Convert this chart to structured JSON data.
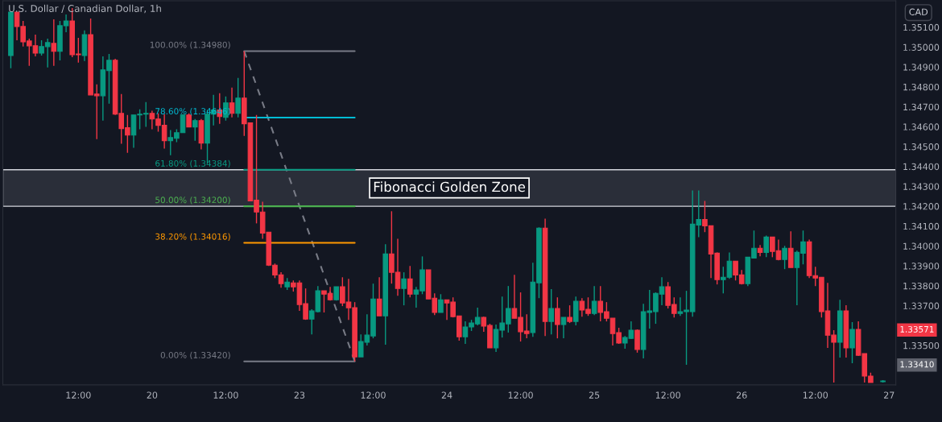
{
  "chart_data": {
    "type": "candlestick",
    "title": "U.S. Dollar / Canadian Dollar, 1h",
    "categories": [
      null,
      null,
      null,
      null,
      null,
      null,
      null,
      null,
      null,
      null,
      null,
      null,
      "12:00",
      null,
      null,
      null,
      null,
      null,
      null,
      null,
      null,
      null,
      null,
      null,
      "20",
      null,
      null,
      null,
      null,
      null,
      null,
      null,
      null,
      null,
      null,
      null,
      "12:00",
      null,
      null,
      null,
      null,
      null,
      null,
      null,
      null,
      null,
      null,
      null,
      "23",
      null,
      null,
      null,
      null,
      null,
      null,
      null,
      null,
      null,
      null,
      null,
      "12:00",
      null,
      null,
      null,
      null,
      null,
      null,
      null,
      null,
      null,
      null,
      null,
      "24",
      null,
      null,
      null,
      null,
      null,
      null,
      null,
      null,
      null,
      null,
      null,
      "12:00",
      null,
      null,
      null,
      null,
      null,
      null,
      null,
      null,
      null,
      null,
      null,
      "25",
      null,
      null,
      null,
      null,
      null,
      null,
      null,
      null,
      null,
      null,
      null,
      "12:00",
      null,
      null,
      null,
      null,
      null,
      null,
      null,
      null,
      null,
      null,
      null,
      "26",
      null,
      null,
      null,
      null,
      null,
      null,
      null,
      null,
      null,
      null,
      null,
      "12:00",
      null,
      null,
      null,
      null,
      null,
      null,
      null,
      null,
      null,
      null,
      null,
      "27"
    ],
    "ohlc": [
      null,
      [
        1.34958,
        1.35181,
        1.34894,
        1.35176
      ],
      [
        1.35176,
        1.35176,
        1.35035,
        1.35104
      ],
      [
        1.35104,
        1.35132,
        1.35003,
        1.35027
      ],
      [
        1.35031,
        1.35043,
        1.34906,
        1.35007
      ],
      [
        1.35007,
        1.35063,
        1.34954,
        1.3497
      ],
      [
        1.3497,
        1.35035,
        1.34958,
        1.35003
      ],
      [
        1.35003,
        1.35043,
        1.34898,
        1.35023
      ],
      [
        1.35019,
        1.3514,
        1.34906,
        1.34979
      ],
      [
        1.34979,
        1.35132,
        1.34934,
        1.35108
      ],
      [
        1.35108,
        1.35164,
        1.35075,
        1.35132
      ],
      [
        1.35132,
        1.35197,
        1.3495,
        1.34962
      ],
      [
        1.34966,
        1.35047,
        1.34922,
        1.34962
      ],
      [
        1.34958,
        1.35084,
        1.3493,
        1.35063
      ],
      [
        1.35063,
        1.35144,
        1.3476,
        1.3476
      ],
      [
        1.34764,
        1.34813,
        1.34538,
        1.34756
      ],
      [
        1.34756,
        1.34954,
        1.34631,
        1.34886
      ],
      [
        1.34882,
        1.34966,
        1.34716,
        1.34934
      ],
      [
        1.34934,
        1.34942,
        1.34659,
        1.34663
      ],
      [
        1.34667,
        1.34764,
        1.34514,
        1.34591
      ],
      [
        1.34595,
        1.34659,
        1.34469,
        1.34558
      ],
      [
        1.34558,
        1.34659,
        1.34494,
        1.34659
      ],
      [
        1.34659,
        1.34688,
        1.34587,
        1.34663
      ],
      [
        1.34663,
        1.34724,
        1.34599,
        1.34667
      ],
      [
        1.34667,
        1.3468,
        1.34587,
        1.34639
      ],
      [
        1.34639,
        1.34667,
        1.34575,
        1.34607
      ],
      [
        1.34607,
        1.34663,
        1.3449,
        1.3453
      ],
      [
        1.3453,
        1.34583,
        1.34457,
        1.34546
      ],
      [
        1.34542,
        1.34587,
        1.34522,
        1.3457
      ],
      [
        1.3457,
        1.34663,
        1.3457,
        1.34659
      ],
      [
        1.34659,
        1.34667,
        1.34599,
        1.34599
      ],
      [
        1.34599,
        1.34639,
        1.3453,
        1.34631
      ],
      [
        1.34631,
        1.34639,
        1.34486,
        1.34518
      ],
      [
        1.34518,
        1.34684,
        1.34417,
        1.34663
      ],
      [
        1.34663,
        1.3476,
        1.34607,
        1.34684
      ],
      [
        1.34684,
        1.34768,
        1.34615,
        1.34651
      ],
      [
        1.34647,
        1.34752,
        1.34631,
        1.3472
      ],
      [
        1.3472,
        1.34797,
        1.34647,
        1.34667
      ],
      [
        1.34667,
        1.34845,
        1.34647,
        1.34744
      ],
      [
        1.34744,
        1.3498,
        1.34554,
        1.34615
      ],
      [
        1.34619,
        1.34619,
        1.34227,
        1.34227
      ],
      [
        1.34231,
        1.34659,
        1.34114,
        1.34171
      ],
      [
        1.34171,
        1.34223,
        1.34037,
        1.34065
      ],
      [
        1.3407,
        1.3407,
        1.339,
        1.33904
      ],
      [
        1.33904,
        1.33912,
        1.33839,
        1.33855
      ],
      [
        1.33855,
        1.33868,
        1.33791,
        1.33811
      ],
      [
        1.33795,
        1.33839,
        1.33779,
        1.33819
      ],
      [
        1.33815,
        1.33827,
        1.33771,
        1.33795
      ],
      [
        1.33815,
        1.33827,
        1.33674,
        1.33706
      ],
      [
        1.3371,
        1.33787,
        1.33629,
        1.33633
      ],
      [
        1.33633,
        1.33682,
        1.33556,
        1.33674
      ],
      [
        1.3367,
        1.33799,
        1.33666,
        1.33775
      ],
      [
        1.33775,
        1.33775,
        1.33666,
        1.33758
      ],
      [
        1.33762,
        1.33795,
        1.33726,
        1.3373
      ],
      [
        1.3373,
        1.33795,
        1.33726,
        1.33795
      ],
      [
        1.33795,
        1.33843,
        1.33698,
        1.33714
      ],
      [
        1.33718,
        1.33835,
        1.33629,
        1.3369
      ],
      [
        1.3369,
        1.33718,
        1.3342,
        1.33443
      ],
      [
        1.33443,
        1.33556,
        1.33443,
        1.3352
      ],
      [
        1.33516,
        1.33657,
        1.335,
        1.33552
      ],
      [
        1.33548,
        1.33811,
        1.33536,
        1.33734
      ],
      [
        1.33734,
        1.33843,
        1.33649,
        1.33649
      ],
      [
        1.33649,
        1.34009,
        1.33504,
        1.3396
      ],
      [
        1.3396,
        1.34175,
        1.33811,
        1.33868
      ],
      [
        1.33868,
        1.34037,
        1.3375,
        1.33787
      ],
      [
        1.33787,
        1.33868,
        1.33702,
        1.33835
      ],
      [
        1.33835,
        1.339,
        1.33742,
        1.33758
      ],
      [
        1.33758,
        1.33795,
        1.3369,
        1.33779
      ],
      [
        1.33775,
        1.33948,
        1.33758,
        1.3388
      ],
      [
        1.3388,
        1.3388,
        1.33734,
        1.33734
      ],
      [
        1.33738,
        1.33762,
        1.33653,
        1.33666
      ],
      [
        1.33666,
        1.33758,
        1.33666,
        1.3373
      ],
      [
        1.3373,
        1.3373,
        1.33629,
        1.33714
      ],
      [
        1.33718,
        1.33742,
        1.33641,
        1.33645
      ],
      [
        1.33649,
        1.33649,
        1.33524,
        1.33544
      ],
      [
        1.33544,
        1.33621,
        1.33508,
        1.33593
      ],
      [
        1.33593,
        1.33629,
        1.33573,
        1.33613
      ],
      [
        1.33609,
        1.3369,
        1.33601,
        1.33641
      ],
      [
        1.33641,
        1.33645,
        1.33569,
        1.33597
      ],
      [
        1.33601,
        1.33609,
        1.33488,
        1.33488
      ],
      [
        1.33488,
        1.33605,
        1.33468,
        1.33581
      ],
      [
        1.33577,
        1.33746,
        1.3354,
        1.33613
      ],
      [
        1.33609,
        1.33799,
        1.33565,
        1.33686
      ],
      [
        1.33686,
        1.33855,
        1.33637,
        1.33637
      ],
      [
        1.33641,
        1.33767,
        1.3352,
        1.33569
      ],
      [
        1.33573,
        1.33657,
        1.33536,
        1.3356
      ],
      [
        1.33565,
        1.33916,
        1.33544,
        1.33819
      ],
      [
        1.33815,
        1.34094,
        1.33738,
        1.3409
      ],
      [
        1.3409,
        1.34138,
        1.33548,
        1.33621
      ],
      [
        1.33621,
        1.33783,
        1.33556,
        1.33686
      ],
      [
        1.33686,
        1.33742,
        1.33536,
        1.33605
      ],
      [
        1.33605,
        1.33641,
        1.33536,
        1.33641
      ],
      [
        1.33641,
        1.33702,
        1.33613,
        1.33621
      ],
      [
        1.33621,
        1.33746,
        1.33601,
        1.33722
      ],
      [
        1.33722,
        1.33738,
        1.33645,
        1.33678
      ],
      [
        1.33682,
        1.33742,
        1.33649,
        1.33661
      ],
      [
        1.33661,
        1.33799,
        1.33653,
        1.33722
      ],
      [
        1.33722,
        1.33799,
        1.33621,
        1.33666
      ],
      [
        1.3367,
        1.33718,
        1.33621,
        1.33637
      ],
      [
        1.33637,
        1.33637,
        1.335,
        1.3356
      ],
      [
        1.33565,
        1.33589,
        1.33508,
        1.33512
      ],
      [
        1.33512,
        1.33548,
        1.33484,
        1.3354
      ],
      [
        1.33536,
        1.33621,
        1.33532,
        1.33577
      ],
      [
        1.33577,
        1.33581,
        1.33464,
        1.3348
      ],
      [
        1.3348,
        1.3371,
        1.33435,
        1.3367
      ],
      [
        1.33666,
        1.33779,
        1.33585,
        1.33674
      ],
      [
        1.3367,
        1.33767,
        1.33609,
        1.33762
      ],
      [
        1.33758,
        1.33843,
        1.33702,
        1.33795
      ],
      [
        1.33795,
        1.33819,
        1.33686,
        1.33702
      ],
      [
        1.33706,
        1.33742,
        1.33641,
        1.33661
      ],
      [
        1.33661,
        1.33742,
        1.33649,
        1.3367
      ],
      [
        1.3367,
        1.33775,
        1.33403,
        1.33678
      ],
      [
        1.3367,
        1.3428,
        1.33645,
        1.3411
      ],
      [
        1.34106,
        1.3428,
        1.34045,
        1.34134
      ],
      [
        1.34134,
        1.34227,
        1.3407,
        1.34102
      ],
      [
        1.34102,
        1.34102,
        1.33839,
        1.3396
      ],
      [
        1.33964,
        1.33968,
        1.33807,
        1.33831
      ],
      [
        1.33831,
        1.33896,
        1.33762,
        1.33843
      ],
      [
        1.33843,
        1.33968,
        1.33835,
        1.33924
      ],
      [
        1.33924,
        1.33924,
        1.33827,
        1.33855
      ],
      [
        1.33855,
        1.3388,
        1.33807,
        1.33811
      ],
      [
        1.33811,
        1.33944,
        1.33799,
        1.33944
      ],
      [
        1.3394,
        1.34078,
        1.3394,
        1.33989
      ],
      [
        1.33989,
        1.34005,
        1.33948,
        1.33968
      ],
      [
        1.33968,
        1.34053,
        1.33944,
        1.34045
      ],
      [
        1.34045,
        1.34045,
        1.33944,
        1.33973
      ],
      [
        1.33977,
        1.34033,
        1.33928,
        1.33932
      ],
      [
        1.33932,
        1.34001,
        1.33884,
        1.33989
      ],
      [
        1.33989,
        1.34074,
        1.33892,
        1.33892
      ],
      [
        1.33892,
        1.33977,
        1.33702,
        1.33968
      ],
      [
        1.33964,
        1.34078,
        1.33908,
        1.34021
      ],
      [
        1.34021,
        1.34033,
        1.33839,
        1.33851
      ],
      [
        1.33851,
        1.33896,
        1.33799,
        1.33839
      ],
      [
        1.33843,
        1.33843,
        1.33641,
        1.3367
      ],
      [
        1.33674,
        1.33815,
        1.33488,
        1.33552
      ],
      [
        1.33552,
        1.33577,
        1.33314,
        1.33516
      ],
      [
        1.33516,
        1.3373,
        1.33439,
        1.33674
      ],
      [
        1.33674,
        1.33702,
        1.33439,
        1.33488
      ],
      [
        1.33488,
        1.33617,
        1.33411,
        1.33581
      ],
      [
        1.33581,
        1.33621,
        1.33447,
        1.33451
      ],
      [
        1.33459,
        1.33459,
        1.33314,
        1.33346
      ],
      [
        1.33346,
        1.33363,
        1.33314,
        1.33314
      ],
      null,
      [
        1.33318,
        1.33326,
        1.33314,
        1.33322
      ],
      null
    ],
    "series": [
      {
        "type": "line",
        "color": "#787b86",
        "line_style": "dashed",
        "values": [
          null,
          null,
          null,
          null,
          null,
          null,
          null,
          null,
          null,
          null,
          null,
          null,
          null,
          null,
          null,
          null,
          null,
          null,
          null,
          null,
          null,
          null,
          null,
          null,
          null,
          null,
          null,
          null,
          null,
          null,
          null,
          null,
          null,
          null,
          null,
          null,
          null,
          null,
          null,
          1.3498,
          1.34893,
          1.34807,
          1.3472,
          1.34633,
          1.34547,
          1.3446,
          1.34373,
          1.34287,
          1.342,
          1.34113,
          1.34027,
          1.3394,
          1.33853,
          1.33767,
          1.3368,
          1.33593,
          1.33507,
          1.3342,
          null,
          null,
          null,
          null,
          null,
          null,
          null,
          null,
          null,
          null,
          null,
          null,
          null,
          null,
          null,
          null,
          null,
          null,
          null,
          null,
          null,
          null,
          null,
          null,
          null,
          null,
          null,
          null,
          null,
          null,
          null,
          null,
          null,
          null,
          null,
          null,
          null,
          null,
          null,
          null,
          null,
          null,
          null,
          null,
          null,
          null,
          null,
          null,
          null,
          null,
          null,
          null,
          null,
          null,
          null,
          null,
          null,
          null,
          null,
          null,
          null,
          null,
          null,
          null,
          null,
          null,
          null,
          null,
          null,
          null,
          null,
          null,
          null,
          null,
          null,
          null,
          null,
          null,
          null,
          null,
          null,
          null,
          null,
          null,
          null,
          null,
          null
        ]
      },
      {
        "type": "line",
        "name": "100.00% (1.34980)",
        "color": "#787b86",
        "values": [
          null,
          null,
          null,
          null,
          null,
          null,
          null,
          null,
          null,
          null,
          null,
          null,
          null,
          null,
          null,
          null,
          null,
          null,
          null,
          null,
          null,
          null,
          null,
          null,
          null,
          null,
          null,
          null,
          null,
          null,
          null,
          null,
          null,
          null,
          null,
          null,
          null,
          null,
          null,
          1.3498,
          1.3498,
          1.3498,
          1.3498,
          1.3498,
          1.3498,
          1.3498,
          1.3498,
          1.3498,
          1.3498,
          1.3498,
          1.3498,
          1.3498,
          1.3498,
          1.3498,
          1.3498,
          1.3498,
          1.3498,
          1.3498,
          null,
          null,
          null,
          null,
          null,
          null,
          null,
          null,
          null,
          null,
          null,
          null,
          null,
          null,
          null,
          null,
          null,
          null,
          null,
          null,
          null,
          null,
          null,
          null,
          null,
          null,
          null,
          null,
          null,
          null,
          null,
          null,
          null,
          null,
          null,
          null,
          null,
          null,
          null,
          null,
          null,
          null,
          null,
          null,
          null,
          null,
          null,
          null,
          null,
          null,
          null,
          null,
          null,
          null,
          null,
          null,
          null,
          null,
          null,
          null,
          null,
          null,
          null,
          null,
          null,
          null,
          null,
          null,
          null,
          null,
          null,
          null,
          null,
          null,
          null,
          null,
          null,
          null,
          null,
          null,
          null,
          null,
          null,
          null,
          null,
          null,
          null
        ]
      },
      {
        "type": "line",
        "name": "78.60% (1.34646)",
        "color": "#00bcd4",
        "values": [
          null,
          null,
          null,
          null,
          null,
          null,
          null,
          null,
          null,
          null,
          null,
          null,
          null,
          null,
          null,
          null,
          null,
          null,
          null,
          null,
          null,
          null,
          null,
          null,
          null,
          null,
          null,
          null,
          null,
          null,
          null,
          null,
          null,
          null,
          null,
          null,
          null,
          null,
          null,
          1.34646,
          1.34646,
          1.34646,
          1.34646,
          1.34646,
          1.34646,
          1.34646,
          1.34646,
          1.34646,
          1.34646,
          1.34646,
          1.34646,
          1.34646,
          1.34646,
          1.34646,
          1.34646,
          1.34646,
          1.34646,
          1.34646,
          null,
          null,
          null,
          null,
          null,
          null,
          null,
          null,
          null,
          null,
          null,
          null,
          null,
          null,
          null,
          null,
          null,
          null,
          null,
          null,
          null,
          null,
          null,
          null,
          null,
          null,
          null,
          null,
          null,
          null,
          null,
          null,
          null,
          null,
          null,
          null,
          null,
          null,
          null,
          null,
          null,
          null,
          null,
          null,
          null,
          null,
          null,
          null,
          null,
          null,
          null,
          null,
          null,
          null,
          null,
          null,
          null,
          null,
          null,
          null,
          null,
          null,
          null,
          null,
          null,
          null,
          null,
          null,
          null,
          null,
          null,
          null,
          null,
          null,
          null,
          null,
          null,
          null,
          null,
          null,
          null,
          null,
          null,
          null,
          null,
          null,
          null
        ]
      },
      {
        "type": "line",
        "name": "61.80% (1.34384)",
        "color": "#089981",
        "values": [
          null,
          null,
          null,
          null,
          null,
          null,
          null,
          null,
          null,
          null,
          null,
          null,
          null,
          null,
          null,
          null,
          null,
          null,
          null,
          null,
          null,
          null,
          null,
          null,
          null,
          null,
          null,
          null,
          null,
          null,
          null,
          null,
          null,
          null,
          null,
          null,
          null,
          null,
          null,
          1.34384,
          1.34384,
          1.34384,
          1.34384,
          1.34384,
          1.34384,
          1.34384,
          1.34384,
          1.34384,
          1.34384,
          1.34384,
          1.34384,
          1.34384,
          1.34384,
          1.34384,
          1.34384,
          1.34384,
          1.34384,
          1.34384,
          null,
          null,
          null,
          null,
          null,
          null,
          null,
          null,
          null,
          null,
          null,
          null,
          null,
          null,
          null,
          null,
          null,
          null,
          null,
          null,
          null,
          null,
          null,
          null,
          null,
          null,
          null,
          null,
          null,
          null,
          null,
          null,
          null,
          null,
          null,
          null,
          null,
          null,
          null,
          null,
          null,
          null,
          null,
          null,
          null,
          null,
          null,
          null,
          null,
          null,
          null,
          null,
          null,
          null,
          null,
          null,
          null,
          null,
          null,
          null,
          null,
          null,
          null,
          null,
          null,
          null,
          null,
          null,
          null,
          null,
          null,
          null,
          null,
          null,
          null,
          null,
          null,
          null,
          null,
          null,
          null,
          null,
          null,
          null,
          null,
          null,
          null
        ]
      },
      {
        "type": "line",
        "name": "50.00% (1.34200)",
        "color": "#4caf50",
        "values": [
          null,
          null,
          null,
          null,
          null,
          null,
          null,
          null,
          null,
          null,
          null,
          null,
          null,
          null,
          null,
          null,
          null,
          null,
          null,
          null,
          null,
          null,
          null,
          null,
          null,
          null,
          null,
          null,
          null,
          null,
          null,
          null,
          null,
          null,
          null,
          null,
          null,
          null,
          null,
          1.342,
          1.342,
          1.342,
          1.342,
          1.342,
          1.342,
          1.342,
          1.342,
          1.342,
          1.342,
          1.342,
          1.342,
          1.342,
          1.342,
          1.342,
          1.342,
          1.342,
          1.342,
          1.342,
          null,
          null,
          null,
          null,
          null,
          null,
          null,
          null,
          null,
          null,
          null,
          null,
          null,
          null,
          null,
          null,
          null,
          null,
          null,
          null,
          null,
          null,
          null,
          null,
          null,
          null,
          null,
          null,
          null,
          null,
          null,
          null,
          null,
          null,
          null,
          null,
          null,
          null,
          null,
          null,
          null,
          null,
          null,
          null,
          null,
          null,
          null,
          null,
          null,
          null,
          null,
          null,
          null,
          null,
          null,
          null,
          null,
          null,
          null,
          null,
          null,
          null,
          null,
          null,
          null,
          null,
          null,
          null,
          null,
          null,
          null,
          null,
          null,
          null,
          null,
          null,
          null,
          null,
          null,
          null,
          null,
          null,
          null,
          null,
          null,
          null,
          null
        ]
      },
      {
        "type": "line",
        "name": "38.20% (1.34016)",
        "color": "#ff9800",
        "values": [
          null,
          null,
          null,
          null,
          null,
          null,
          null,
          null,
          null,
          null,
          null,
          null,
          null,
          null,
          null,
          null,
          null,
          null,
          null,
          null,
          null,
          null,
          null,
          null,
          null,
          null,
          null,
          null,
          null,
          null,
          null,
          null,
          null,
          null,
          null,
          null,
          null,
          null,
          null,
          1.34016,
          1.34016,
          1.34016,
          1.34016,
          1.34016,
          1.34016,
          1.34016,
          1.34016,
          1.34016,
          1.34016,
          1.34016,
          1.34016,
          1.34016,
          1.34016,
          1.34016,
          1.34016,
          1.34016,
          1.34016,
          1.34016,
          null,
          null,
          null,
          null,
          null,
          null,
          null,
          null,
          null,
          null,
          null,
          null,
          null,
          null,
          null,
          null,
          null,
          null,
          null,
          null,
          null,
          null,
          null,
          null,
          null,
          null,
          null,
          null,
          null,
          null,
          null,
          null,
          null,
          null,
          null,
          null,
          null,
          null,
          null,
          null,
          null,
          null,
          null,
          null,
          null,
          null,
          null,
          null,
          null,
          null,
          null,
          null,
          null,
          null,
          null,
          null,
          null,
          null,
          null,
          null,
          null,
          null,
          null,
          null,
          null,
          null,
          null,
          null,
          null,
          null,
          null,
          null,
          null,
          null,
          null,
          null,
          null,
          null,
          null,
          null,
          null,
          null,
          null,
          null,
          null,
          null,
          null
        ]
      },
      {
        "type": "line",
        "name": "0.00% (1.33420)",
        "color": "#787b86",
        "values": [
          null,
          null,
          null,
          null,
          null,
          null,
          null,
          null,
          null,
          null,
          null,
          null,
          null,
          null,
          null,
          null,
          null,
          null,
          null,
          null,
          null,
          null,
          null,
          null,
          null,
          null,
          null,
          null,
          null,
          null,
          null,
          null,
          null,
          null,
          null,
          null,
          null,
          null,
          null,
          1.3342,
          1.3342,
          1.3342,
          1.3342,
          1.3342,
          1.3342,
          1.3342,
          1.3342,
          1.3342,
          1.3342,
          1.3342,
          1.3342,
          1.3342,
          1.3342,
          1.3342,
          1.3342,
          1.3342,
          1.3342,
          1.3342,
          null,
          null,
          null,
          null,
          null,
          null,
          null,
          null,
          null,
          null,
          null,
          null,
          null,
          null,
          null,
          null,
          null,
          null,
          null,
          null,
          null,
          null,
          null,
          null,
          null,
          null,
          null,
          null,
          null,
          null,
          null,
          null,
          null,
          null,
          null,
          null,
          null,
          null,
          null,
          null,
          null,
          null,
          null,
          null,
          null,
          null,
          null,
          null,
          null,
          null,
          null,
          null,
          null,
          null,
          null,
          null,
          null,
          null,
          null,
          null,
          null,
          null,
          null,
          null,
          null,
          null,
          null,
          null,
          null,
          null,
          null,
          null,
          null,
          null,
          null,
          null,
          null,
          null,
          null,
          null,
          null,
          null,
          null,
          null,
          null,
          null,
          null
        ]
      }
    ],
    "bands": [
      {
        "axis": "y",
        "from": 1.342,
        "to": 1.34384,
        "label": "Fibonacci Golden Zone",
        "color": "#2a2e39"
      }
    ],
    "ylim": [
      1.33302,
      1.35233
    ],
    "yticks": [
      {
        "value": 1.351,
        "label": "1.35100"
      },
      {
        "value": 1.35,
        "label": "1.35000"
      },
      {
        "value": 1.349,
        "label": "1.34900"
      },
      {
        "value": 1.348,
        "label": "1.34800"
      },
      {
        "value": 1.347,
        "label": "1.34700"
      },
      {
        "value": 1.346,
        "label": "1.34600"
      },
      {
        "value": 1.345,
        "label": "1.34500"
      },
      {
        "value": 1.344,
        "label": "1.34400"
      },
      {
        "value": 1.343,
        "label": "1.34300"
      },
      {
        "value": 1.342,
        "label": "1.34200"
      },
      {
        "value": 1.341,
        "label": "1.34100"
      },
      {
        "value": 1.34,
        "label": "1.34000"
      },
      {
        "value": 1.339,
        "label": "1.33900"
      },
      {
        "value": 1.338,
        "label": "1.33800"
      },
      {
        "value": 1.337,
        "label": "1.33700"
      },
      {
        "value": 1.335,
        "label": "1.33500"
      }
    ],
    "annotations": [
      "CAD",
      "1.33571",
      "1.33410"
    ]
  }
}
